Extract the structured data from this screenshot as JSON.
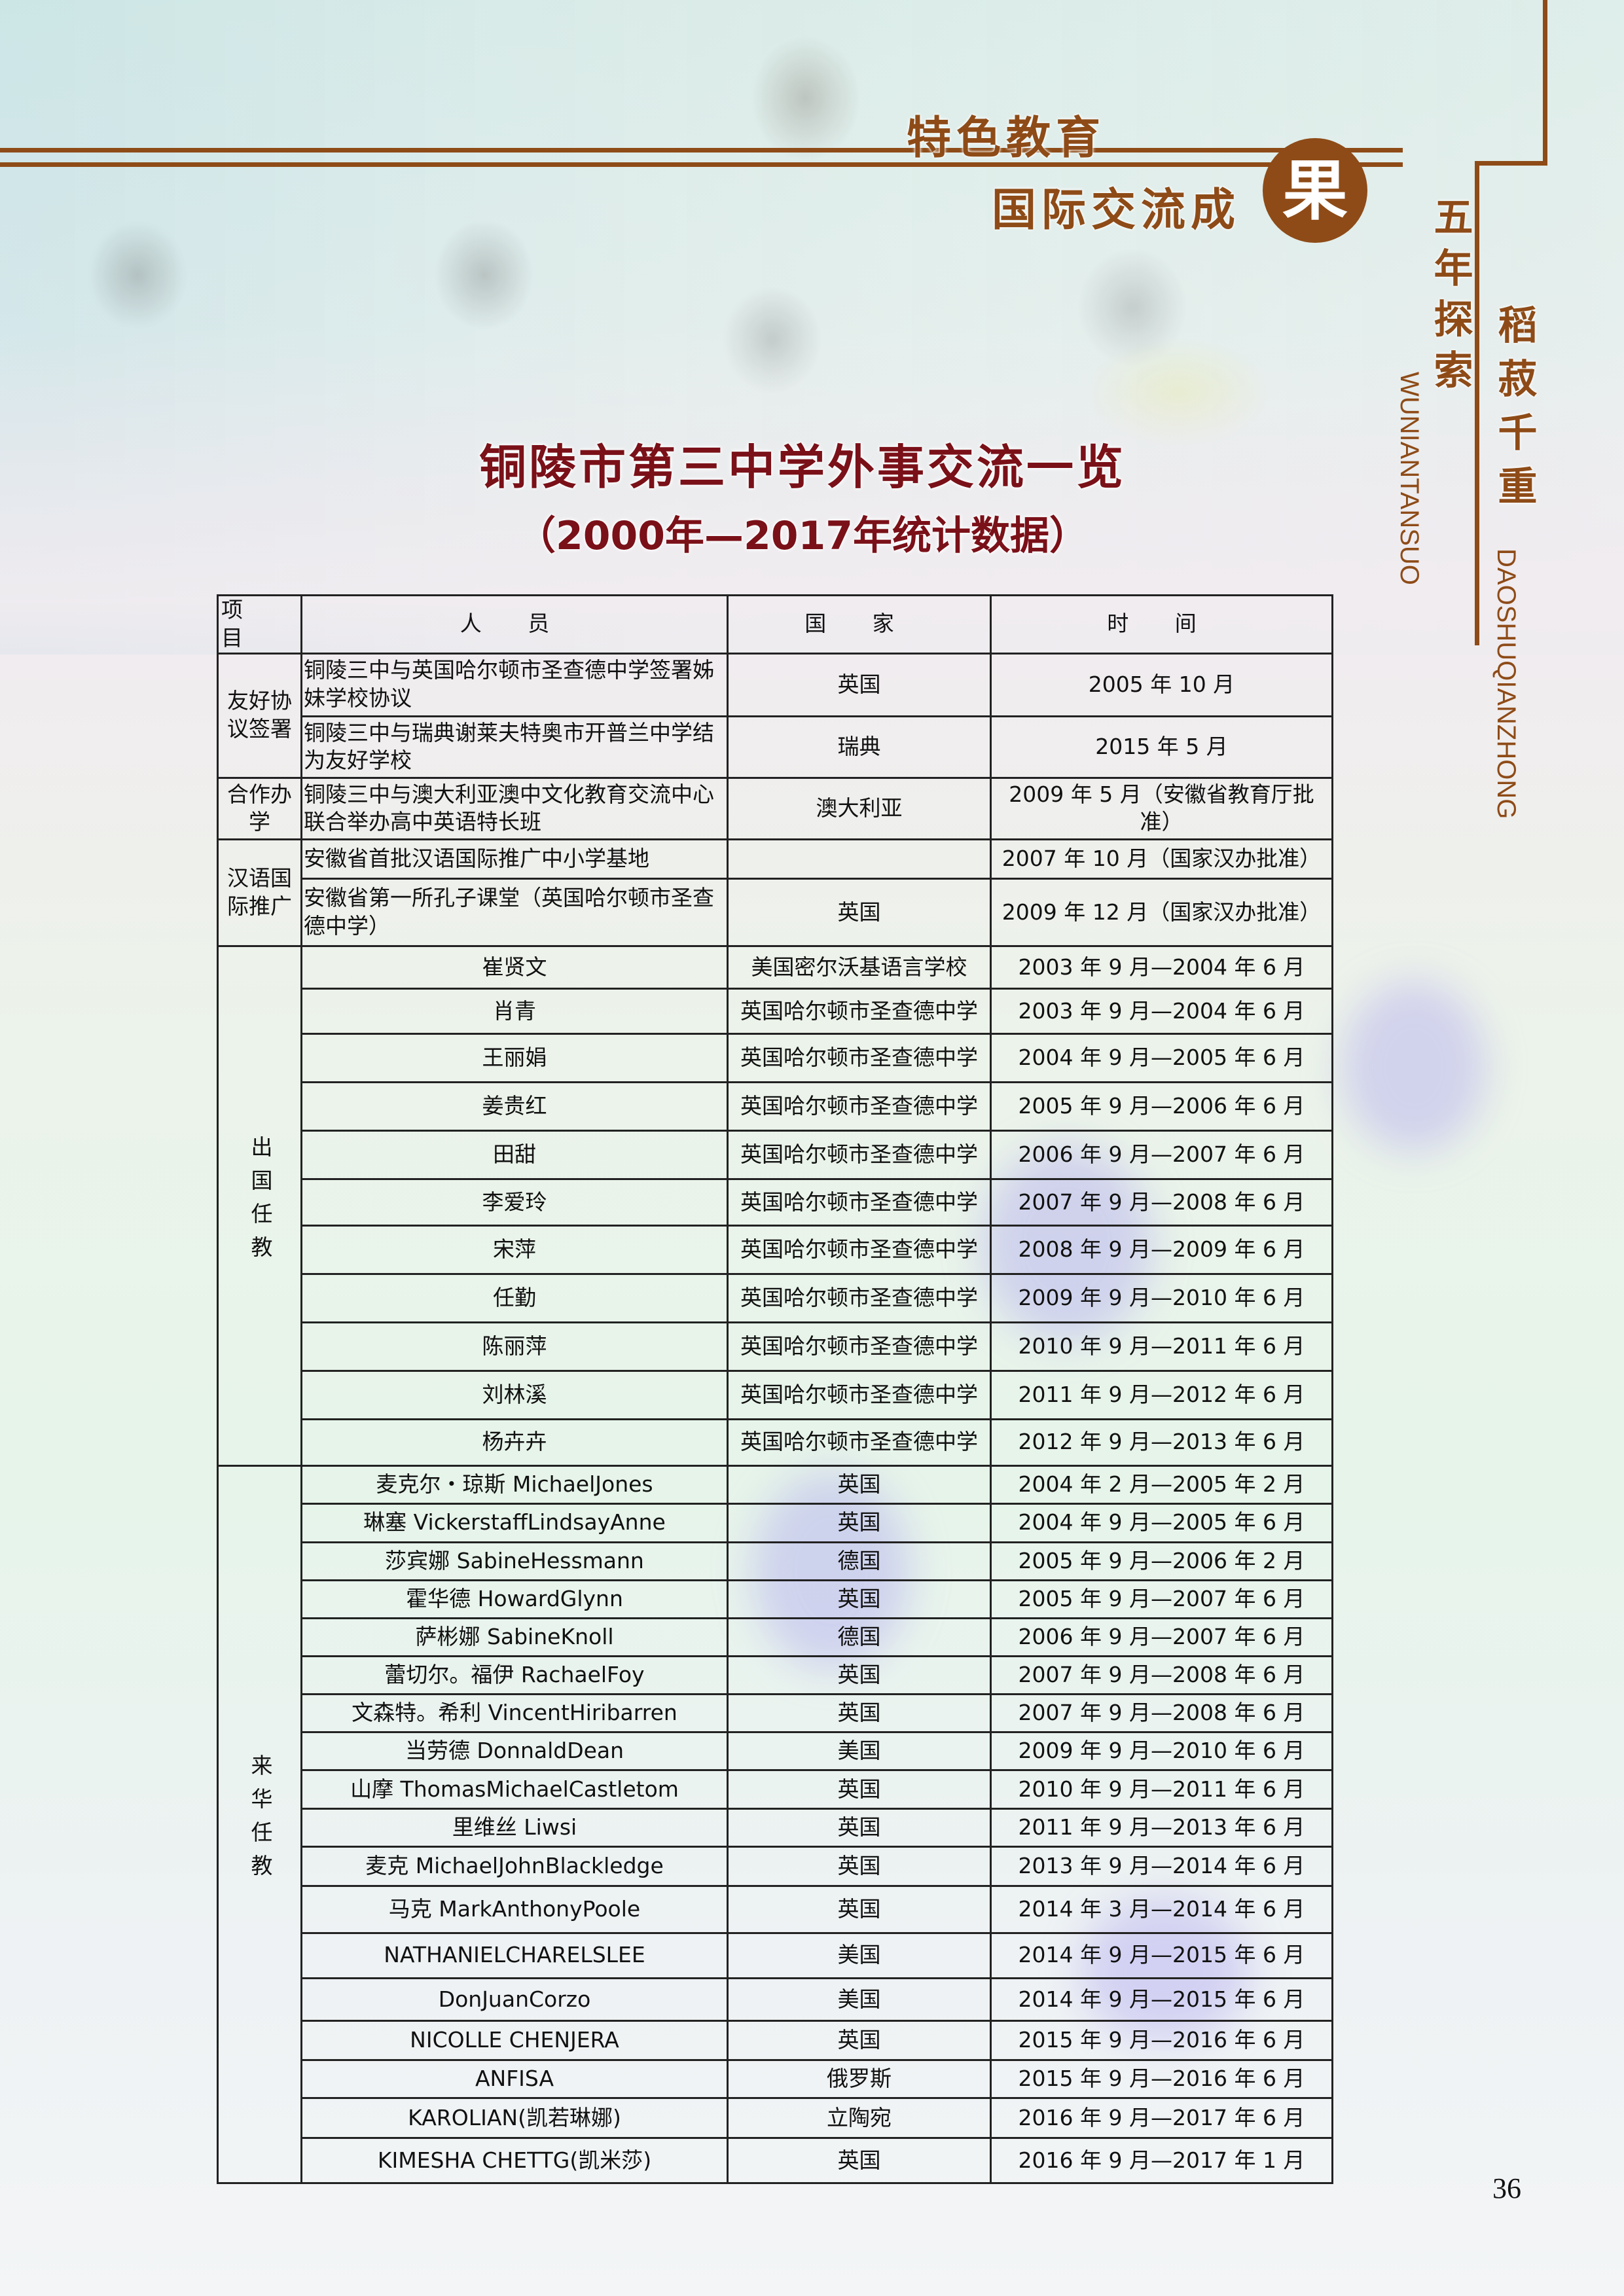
{
  "header": {
    "tagline_1": "特色教育",
    "tagline_2": "国际交流成",
    "tagline_circle": "果",
    "side_title_1": "五年探索",
    "side_title_1_pinyin": "WUNIANTANSUO",
    "side_title_2": "稻菽千重",
    "side_title_2_pinyin": "DAOSHUQIANZHONG",
    "accent_color": "#8e4b17"
  },
  "title": "铜陵市第三中学外事交流一览",
  "subtitle": "（2000年—2017年统计数据）",
  "table": {
    "headers": [
      "项 目",
      "人 员",
      "国 家",
      "时 间"
    ],
    "sections": [
      {
        "category": "友好协议签署",
        "vertical": false,
        "rows": [
          {
            "person": "铜陵三中与英国哈尔顿市圣查德中学签署姊妹学校协议",
            "country": "英国",
            "time": "2005 年 10 月"
          },
          {
            "person": "铜陵三中与瑞典谢莱夫特奥市开普兰中学结为友好学校",
            "country": "瑞典",
            "time": "2015 年 5 月"
          }
        ]
      },
      {
        "category": "合作办学",
        "vertical": false,
        "rows": [
          {
            "person": "铜陵三中与澳大利亚澳中文化教育交流中心联合举办高中英语特长班",
            "country": "澳大利亚",
            "time": "2009 年 5 月（安徽省教育厅批准）"
          }
        ]
      },
      {
        "category": "汉语国际推广",
        "vertical": false,
        "rows": [
          {
            "person": "安徽省首批汉语国际推广中小学基地",
            "country": "",
            "time": "2007 年 10 月（国家汉办批准）"
          },
          {
            "person": "安徽省第一所孔子课堂（英国哈尔顿市圣查德中学）",
            "country": "英国",
            "time": "2009 年 12 月（国家汉办批准）"
          }
        ]
      },
      {
        "category": "出国任教",
        "vertical": true,
        "rows": [
          {
            "person": "崔贤文",
            "country": "美国密尔沃基语言学校",
            "time": "2003 年 9 月—2004 年 6 月"
          },
          {
            "person": "肖青",
            "country": "英国哈尔顿市圣查德中学",
            "time": "2003 年 9 月—2004 年 6 月"
          },
          {
            "person": "王丽娟",
            "country": "英国哈尔顿市圣查德中学",
            "time": "2004 年 9 月—2005 年 6 月"
          },
          {
            "person": "姜贵红",
            "country": "英国哈尔顿市圣查德中学",
            "time": "2005 年 9 月—2006 年 6 月"
          },
          {
            "person": "田甜",
            "country": "英国哈尔顿市圣查德中学",
            "time": "2006 年 9 月—2007 年 6 月"
          },
          {
            "person": "李爱玲",
            "country": "英国哈尔顿市圣查德中学",
            "time": "2007 年 9 月—2008 年 6 月"
          },
          {
            "person": "宋萍",
            "country": "英国哈尔顿市圣查德中学",
            "time": "2008 年 9 月—2009 年 6 月"
          },
          {
            "person": "任勤",
            "country": "英国哈尔顿市圣查德中学",
            "time": "2009 年 9 月—2010 年 6 月"
          },
          {
            "person": "陈丽萍",
            "country": "英国哈尔顿市圣查德中学",
            "time": "2010 年 9 月—2011 年 6 月"
          },
          {
            "person": "刘林溪",
            "country": "英国哈尔顿市圣查德中学",
            "time": "2011 年 9 月—2012 年 6 月"
          },
          {
            "person": "杨卉卉",
            "country": "英国哈尔顿市圣查德中学",
            "time": "2012 年 9 月—2013 年 6 月"
          }
        ]
      },
      {
        "category": "来华任教",
        "vertical": true,
        "rows": [
          {
            "person": "麦克尔・琼斯 MichaelJones",
            "country": "英国",
            "time": "2004 年 2 月—2005 年 2 月"
          },
          {
            "person": "琳塞 VickerstaffLindsayAnne",
            "country": "英国",
            "time": "2004 年 9 月—2005 年 6 月"
          },
          {
            "person": "莎宾娜 SabineHessmann",
            "country": "德国",
            "time": "2005 年 9 月—2006 年 2 月"
          },
          {
            "person": "霍华德 HowardGlynn",
            "country": "英国",
            "time": "2005 年 9 月—2007 年 6 月"
          },
          {
            "person": "萨彬娜 SabineKnoll",
            "country": "德国",
            "time": "2006 年 9 月—2007 年 6 月"
          },
          {
            "person": "蕾切尔。福伊 RachaelFoy",
            "country": "英国",
            "time": "2007 年 9 月—2008 年 6 月"
          },
          {
            "person": "文森特。希利 VincentHiribarren",
            "country": "英国",
            "time": "2007 年 9 月—2008 年 6 月"
          },
          {
            "person": "当劳德 DonnaldDean",
            "country": "美国",
            "time": "2009 年 9 月—2010 年 6 月"
          },
          {
            "person": "山摩 ThomasMichaelCastletom",
            "country": "英国",
            "time": "2010 年 9 月—2011 年 6 月"
          },
          {
            "person": "里维丝 Liwsi",
            "country": "英国",
            "time": "2011 年 9 月—2013 年 6 月"
          },
          {
            "person": "麦克 MichaelJohnBlackledge",
            "country": "英国",
            "time": "2013 年 9 月—2014 年 6 月"
          },
          {
            "person": "马克 MarkAnthonyPoole",
            "country": "英国",
            "time": "2014 年 3 月—2014 年 6 月"
          },
          {
            "person": "NATHANIELCHARELSLEE",
            "country": "美国",
            "time": "2014 年 9 月—2015 年 6 月"
          },
          {
            "person": "DonJuanCorzo",
            "country": "美国",
            "time": "2014 年 9 月—2015 年 6 月"
          },
          {
            "person": "NICOLLE CHENJERA",
            "country": "英国",
            "time": "2015 年 9 月—2016 年 6 月"
          },
          {
            "person": "ANFISA",
            "country": "俄罗斯",
            "time": "2015 年 9 月—2016 年 6 月"
          },
          {
            "person": "KAROLIAN(凯若琳娜)",
            "country": "立陶宛",
            "time": "2016 年 9 月—2017 年 6 月"
          },
          {
            "person": "KIMESHA CHETTG(凯米莎)",
            "country": "英国",
            "time": "2016 年 9 月—2017 年 1 月"
          }
        ]
      }
    ]
  },
  "page_number": "36"
}
